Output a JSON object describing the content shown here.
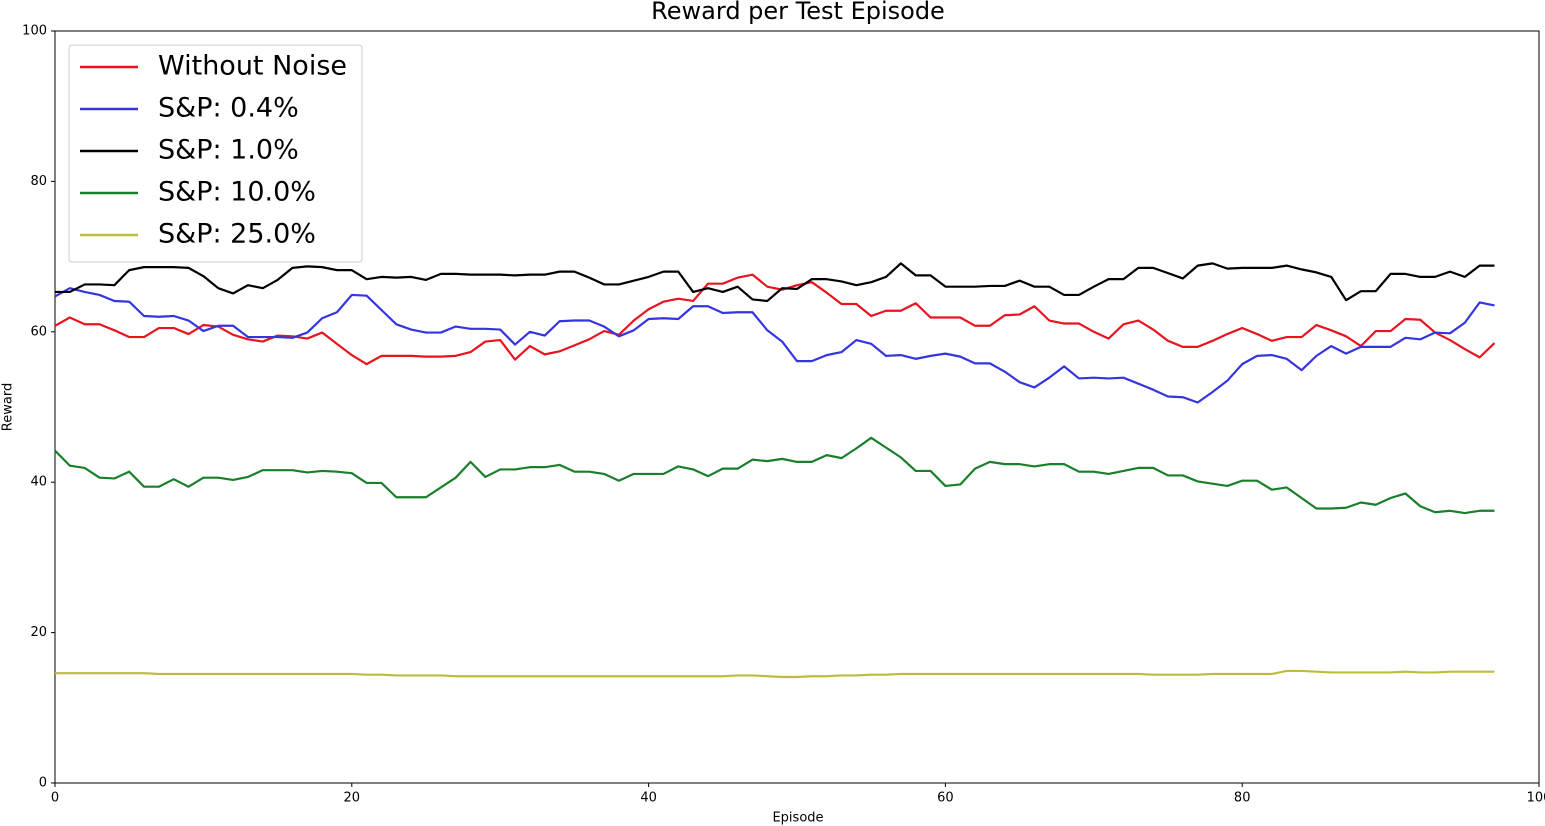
{
  "chart_data": {
    "type": "line",
    "title": "Reward per Test Episode",
    "x_label": "Episode",
    "y_label": "Reward",
    "x": [
      0,
      1,
      2,
      3,
      4,
      5,
      6,
      7,
      8,
      9,
      10,
      11,
      12,
      13,
      14,
      15,
      16,
      17,
      18,
      19,
      20,
      21,
      22,
      23,
      24,
      25,
      26,
      27,
      28,
      29,
      30,
      31,
      32,
      33,
      34,
      35,
      36,
      37,
      38,
      39,
      40,
      41,
      42,
      43,
      44,
      45,
      46,
      47,
      48,
      49,
      50,
      51,
      52,
      53,
      54,
      55,
      56,
      57,
      58,
      59,
      60,
      61,
      62,
      63,
      64,
      65,
      66,
      67,
      68,
      69,
      70,
      71,
      72,
      73,
      74,
      75,
      76,
      77,
      78,
      79,
      80,
      81,
      82,
      83,
      84,
      85,
      86,
      87,
      88,
      89,
      90,
      91,
      92,
      93,
      94,
      95,
      96,
      97
    ],
    "series": [
      {
        "name": "Without Noise",
        "color": "#e8141f",
        "values": [
          60.8,
          61.9,
          61,
          61,
          60.2,
          59.3,
          59.3,
          60.5,
          60.5,
          59.7,
          60.9,
          60.7,
          59.6,
          59,
          58.7,
          59.5,
          59.4,
          59.1,
          59.9,
          58.4,
          56.9,
          55.7,
          56.8,
          56.8,
          56.8,
          56.7,
          56.7,
          56.8,
          57.3,
          58.7,
          58.9,
          56.3,
          58.1,
          57,
          57.4,
          58.2,
          59,
          60.1,
          59.6,
          61.5,
          63,
          64,
          64.4,
          64.1,
          66.4,
          66.4,
          67.2,
          67.6,
          66,
          65.6,
          66.2,
          66.6,
          65.2,
          63.7,
          63.7,
          62.1,
          62.8,
          62.8,
          63.8,
          61.9,
          61.9,
          61.9,
          60.8,
          60.8,
          62.2,
          62.3,
          63.4,
          61.5,
          61.1,
          61.1,
          60,
          59.1,
          61,
          61.5,
          60.3,
          58.8,
          58,
          58,
          58.8,
          59.7,
          60.5,
          59.7,
          58.8,
          59.3,
          59.3,
          60.9,
          60.2,
          59.4,
          58.1,
          60.1,
          60.1,
          61.7,
          61.6,
          59.9,
          58.9,
          57.7,
          56.6,
          58.5
        ]
      },
      {
        "name": "S&P: 0.4%",
        "color": "#3535e0",
        "values": [
          64.7,
          65.8,
          65.3,
          64.9,
          64.1,
          64,
          62.1,
          62,
          62.1,
          61.5,
          60.1,
          60.8,
          60.8,
          59.3,
          59.3,
          59.3,
          59.2,
          59.9,
          61.8,
          62.6,
          64.9,
          64.8,
          62.9,
          61,
          60.3,
          59.9,
          59.9,
          60.7,
          60.4,
          60.4,
          60.3,
          58.3,
          60,
          59.5,
          61.4,
          61.5,
          61.5,
          60.7,
          59.4,
          60.2,
          61.7,
          61.8,
          61.7,
          63.4,
          63.4,
          62.5,
          62.6,
          62.6,
          60.2,
          58.7,
          56.1,
          56.1,
          56.9,
          57.3,
          58.9,
          58.4,
          56.8,
          56.9,
          56.4,
          56.8,
          57.1,
          56.7,
          55.8,
          55.8,
          54.7,
          53.3,
          52.6,
          53.9,
          55.4,
          53.8,
          53.9,
          53.8,
          53.9,
          53.1,
          52.3,
          51.4,
          51.3,
          50.6,
          52,
          53.5,
          55.7,
          56.8,
          56.9,
          56.4,
          54.9,
          56.8,
          58.1,
          57.1,
          58,
          58,
          58,
          59.2,
          59,
          59.9,
          59.8,
          61.2,
          63.9,
          63.5
        ]
      },
      {
        "name": "S&P: 1.0%",
        "color": "#000000",
        "values": [
          65.3,
          65.3,
          66.3,
          66.3,
          66.2,
          68.2,
          68.6,
          68.6,
          68.6,
          68.5,
          67.4,
          65.8,
          65.1,
          66.2,
          65.8,
          66.9,
          68.5,
          68.7,
          68.6,
          68.2,
          68.2,
          67,
          67.3,
          67.2,
          67.3,
          66.9,
          67.7,
          67.7,
          67.6,
          67.6,
          67.6,
          67.5,
          67.6,
          67.6,
          68,
          68,
          67.2,
          66.3,
          66.3,
          66.8,
          67.3,
          68,
          68,
          65.3,
          65.8,
          65.3,
          66,
          64.3,
          64.1,
          65.8,
          65.7,
          67,
          67,
          66.7,
          66.2,
          66.6,
          67.3,
          69.1,
          67.5,
          67.5,
          66,
          66,
          66,
          66.1,
          66.1,
          66.8,
          66,
          66,
          64.9,
          64.9,
          66,
          67,
          67,
          68.5,
          68.5,
          67.8,
          67.1,
          68.8,
          69.1,
          68.4,
          68.5,
          68.5,
          68.5,
          68.8,
          68.3,
          67.9,
          67.3,
          64.2,
          65.4,
          65.4,
          67.7,
          67.7,
          67.3,
          67.3,
          68,
          67.3,
          68.8,
          68.8
        ]
      },
      {
        "name": "S&P: 10.0%",
        "color": "#1a7f2a",
        "values": [
          44.2,
          42.2,
          41.9,
          40.6,
          40.5,
          41.4,
          39.4,
          39.4,
          40.4,
          39.4,
          40.6,
          40.6,
          40.3,
          40.7,
          41.6,
          41.6,
          41.6,
          41.3,
          41.5,
          41.4,
          41.2,
          39.9,
          39.9,
          38,
          38,
          38,
          39.3,
          40.6,
          42.7,
          40.7,
          41.7,
          41.7,
          42,
          42,
          42.3,
          41.4,
          41.4,
          41.1,
          40.2,
          41.1,
          41.1,
          41.1,
          42.1,
          41.7,
          40.8,
          41.8,
          41.8,
          43,
          42.8,
          43.1,
          42.7,
          42.7,
          43.6,
          43.2,
          44.5,
          45.9,
          44.6,
          43.3,
          41.5,
          41.5,
          39.5,
          39.7,
          41.8,
          42.7,
          42.4,
          42.4,
          42.1,
          42.4,
          42.4,
          41.4,
          41.4,
          41.1,
          41.5,
          41.9,
          41.9,
          40.9,
          40.9,
          40.1,
          39.8,
          39.5,
          40.2,
          40.2,
          39,
          39.3,
          37.9,
          36.5,
          36.5,
          36.6,
          37.3,
          37,
          37.9,
          38.5,
          36.8,
          36,
          36.2,
          35.9,
          36.2,
          36.2
        ]
      },
      {
        "name": "S&P: 25.0%",
        "color": "#bcbd3c",
        "values": [
          14.6,
          14.6,
          14.6,
          14.6,
          14.6,
          14.6,
          14.6,
          14.5,
          14.5,
          14.5,
          14.5,
          14.5,
          14.5,
          14.5,
          14.5,
          14.5,
          14.5,
          14.5,
          14.5,
          14.5,
          14.5,
          14.4,
          14.4,
          14.3,
          14.3,
          14.3,
          14.3,
          14.2,
          14.2,
          14.2,
          14.2,
          14.2,
          14.2,
          14.2,
          14.2,
          14.2,
          14.2,
          14.2,
          14.2,
          14.2,
          14.2,
          14.2,
          14.2,
          14.2,
          14.2,
          14.2,
          14.3,
          14.3,
          14.2,
          14.1,
          14.1,
          14.2,
          14.2,
          14.3,
          14.3,
          14.4,
          14.4,
          14.5,
          14.5,
          14.5,
          14.5,
          14.5,
          14.5,
          14.5,
          14.5,
          14.5,
          14.5,
          14.5,
          14.5,
          14.5,
          14.5,
          14.5,
          14.5,
          14.5,
          14.4,
          14.4,
          14.4,
          14.4,
          14.5,
          14.5,
          14.5,
          14.5,
          14.5,
          14.9,
          14.9,
          14.8,
          14.7,
          14.7,
          14.7,
          14.7,
          14.7,
          14.8,
          14.7,
          14.7,
          14.8,
          14.8,
          14.8,
          14.8
        ]
      }
    ],
    "xlim": [
      0,
      100
    ],
    "xticks": [
      0,
      20,
      40,
      60,
      80,
      100
    ],
    "ylim": [
      0,
      100
    ],
    "yticks": [
      0,
      20,
      40,
      60,
      80,
      100
    ],
    "legend": "upper left"
  }
}
